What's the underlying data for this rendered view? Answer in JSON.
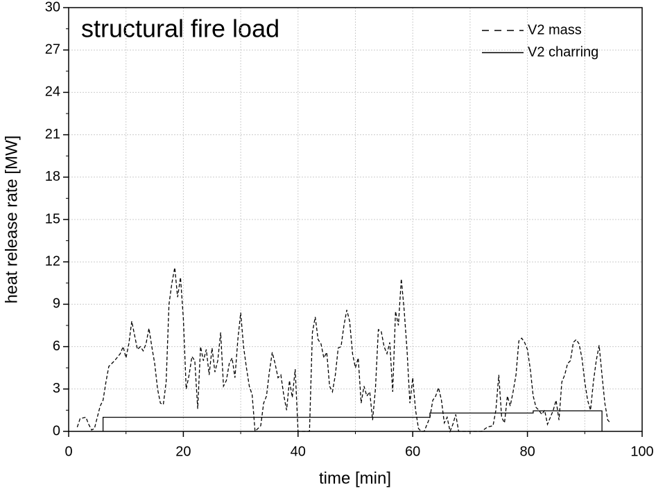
{
  "chart_data": {
    "type": "line",
    "title": "structural fire load",
    "xlabel": "time [min]",
    "ylabel": "heat release rate [MW]",
    "xlim": [
      0,
      100
    ],
    "xticks": [
      0,
      20,
      40,
      60,
      80,
      100
    ],
    "ylim": [
      0,
      30
    ],
    "yticks": [
      0,
      3,
      6,
      9,
      12,
      15,
      18,
      21,
      24,
      27,
      30
    ],
    "grid": true,
    "legend": "upper right",
    "series": [
      {
        "name": "V2 mass",
        "color": "#000000",
        "dash": true,
        "x": [
          1.5,
          2,
          3,
          3.5,
          4,
          4.5,
          5,
          5.5,
          6,
          6.5,
          7,
          8,
          9,
          9.5,
          10,
          10.5,
          11,
          11.5,
          12,
          12.5,
          13,
          13.5,
          14,
          14.5,
          15,
          15.5,
          16,
          16.5,
          17,
          17.5,
          18,
          18.5,
          19,
          19.5,
          20,
          20.5,
          21,
          21.5,
          22,
          22.5,
          23,
          23.5,
          24,
          24.5,
          25,
          25.5,
          26,
          26.5,
          27,
          27.5,
          28,
          28.5,
          29,
          29.5,
          30,
          30.5,
          31,
          31.5,
          32,
          32.5,
          33,
          33.5,
          34,
          34.5,
          35,
          35.5,
          36,
          36.5,
          37,
          37.5,
          38,
          38.5,
          39,
          39.5,
          40,
          42,
          42.5,
          43,
          43.5,
          44,
          44.5,
          45,
          45.5,
          46,
          46.5,
          47,
          47.5,
          48,
          48.5,
          49,
          49.5,
          50,
          50.5,
          51,
          51.5,
          52,
          52.5,
          53,
          53.5,
          54,
          54.5,
          55,
          55.5,
          56,
          56.5,
          57,
          57.5,
          58,
          58.5,
          59,
          59.5,
          60,
          60.5,
          61,
          61.5,
          62,
          63,
          63.5,
          64,
          64.5,
          65,
          65.5,
          66,
          66.5,
          67,
          67.5,
          68,
          69,
          72,
          73,
          74,
          74.5,
          75,
          75.5,
          76,
          76.5,
          77,
          77.5,
          78,
          78.5,
          79,
          79.5,
          80,
          80.5,
          81,
          81.5,
          82,
          82.5,
          83,
          83.5,
          84,
          84.5,
          85,
          85.5,
          86,
          86.5,
          87,
          87.5,
          88,
          88.5,
          89,
          89.5,
          90,
          90.5,
          91,
          91.5,
          92,
          92.5,
          93,
          93.5,
          94,
          94.5
        ],
        "values": [
          0.3,
          0.9,
          1.0,
          0.5,
          0.1,
          0.2,
          1.0,
          1.8,
          2.2,
          3.5,
          4.6,
          5.0,
          5.5,
          6.0,
          5.2,
          6.2,
          7.8,
          6.8,
          5.8,
          6.0,
          5.7,
          6.2,
          7.3,
          6.0,
          4.8,
          3.0,
          2.0,
          1.9,
          3.5,
          9.0,
          10.5,
          11.6,
          9.5,
          10.9,
          8.0,
          3.0,
          4.0,
          5.3,
          5.0,
          1.6,
          6.0,
          5.0,
          5.8,
          4.0,
          5.9,
          4.2,
          5.0,
          7.0,
          3.2,
          3.6,
          4.8,
          5.2,
          3.8,
          6.5,
          8.4,
          6.0,
          4.5,
          3.2,
          2.6,
          0,
          0.2,
          0.4,
          2.0,
          2.5,
          4.2,
          5.6,
          4.8,
          3.8,
          4.0,
          2.6,
          1.5,
          3.6,
          2.4,
          4.4,
          0,
          0,
          7.0,
          8.1,
          6.5,
          6.2,
          5.2,
          5.6,
          3.2,
          2.8,
          4.0,
          5.9,
          6.0,
          7.5,
          8.6,
          7.8,
          5.5,
          4.5,
          5.2,
          2.0,
          3.2,
          2.5,
          2.8,
          0.8,
          3.0,
          7.2,
          7.1,
          6.0,
          5.5,
          6.3,
          2.8,
          8.5,
          7.5,
          10.8,
          8.6,
          5.8,
          2.0,
          3.8,
          1.5,
          0.2,
          0,
          0,
          1.0,
          2.2,
          2.5,
          3.1,
          2.2,
          0.6,
          1.0,
          0,
          0.5,
          1.2,
          0,
          0,
          0,
          0.3,
          0.4,
          1.5,
          4.0,
          1.0,
          0.6,
          2.5,
          1.8,
          2.8,
          4.0,
          6.4,
          6.6,
          6.3,
          5.8,
          4.4,
          2.5,
          1.7,
          1.5,
          1.2,
          1.5,
          0.5,
          1.0,
          1.5,
          2.2,
          0.8,
          3.5,
          4.0,
          4.8,
          5.0,
          6.3,
          6.5,
          6.2,
          5.2,
          3.5,
          2.2,
          1.5,
          3.5,
          5.0,
          6.1,
          4.0,
          2.0,
          0.8,
          0.6
        ]
      },
      {
        "name": "V2 charring",
        "color": "#000000",
        "dash": false,
        "x": [
          6,
          6,
          63,
          63,
          81,
          81,
          93,
          93
        ],
        "values": [
          0,
          1.0,
          1.0,
          1.3,
          1.3,
          1.45,
          1.45,
          0
        ]
      }
    ]
  }
}
